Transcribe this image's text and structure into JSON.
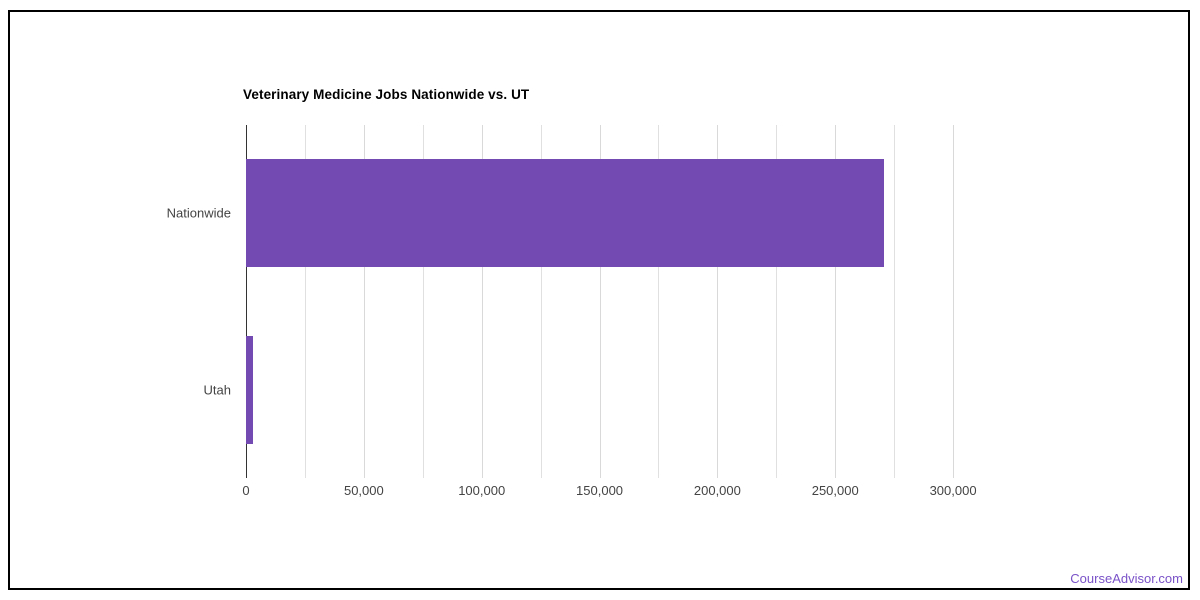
{
  "chart_data": {
    "type": "bar",
    "orientation": "horizontal",
    "title": "Veterinary Medicine Jobs Nationwide vs. UT",
    "categories": [
      "Nationwide",
      "Utah"
    ],
    "values": [
      270500,
      3100
    ],
    "xlabel": "",
    "ylabel": "",
    "xlim": [
      0,
      325000
    ],
    "x_major_ticks": [
      0,
      50000,
      100000,
      150000,
      200000,
      250000,
      300000
    ],
    "x_minor_step": 25000,
    "grid": true,
    "legend_position": "none",
    "bar_color": "#7349B2",
    "gridline_color": "#e0e0e0",
    "axis_line_color": "#333333",
    "label_color": "#444444",
    "title_color": "#000000"
  },
  "attribution": {
    "label": "CourseAdvisor.com",
    "color": "#7A52C8"
  }
}
